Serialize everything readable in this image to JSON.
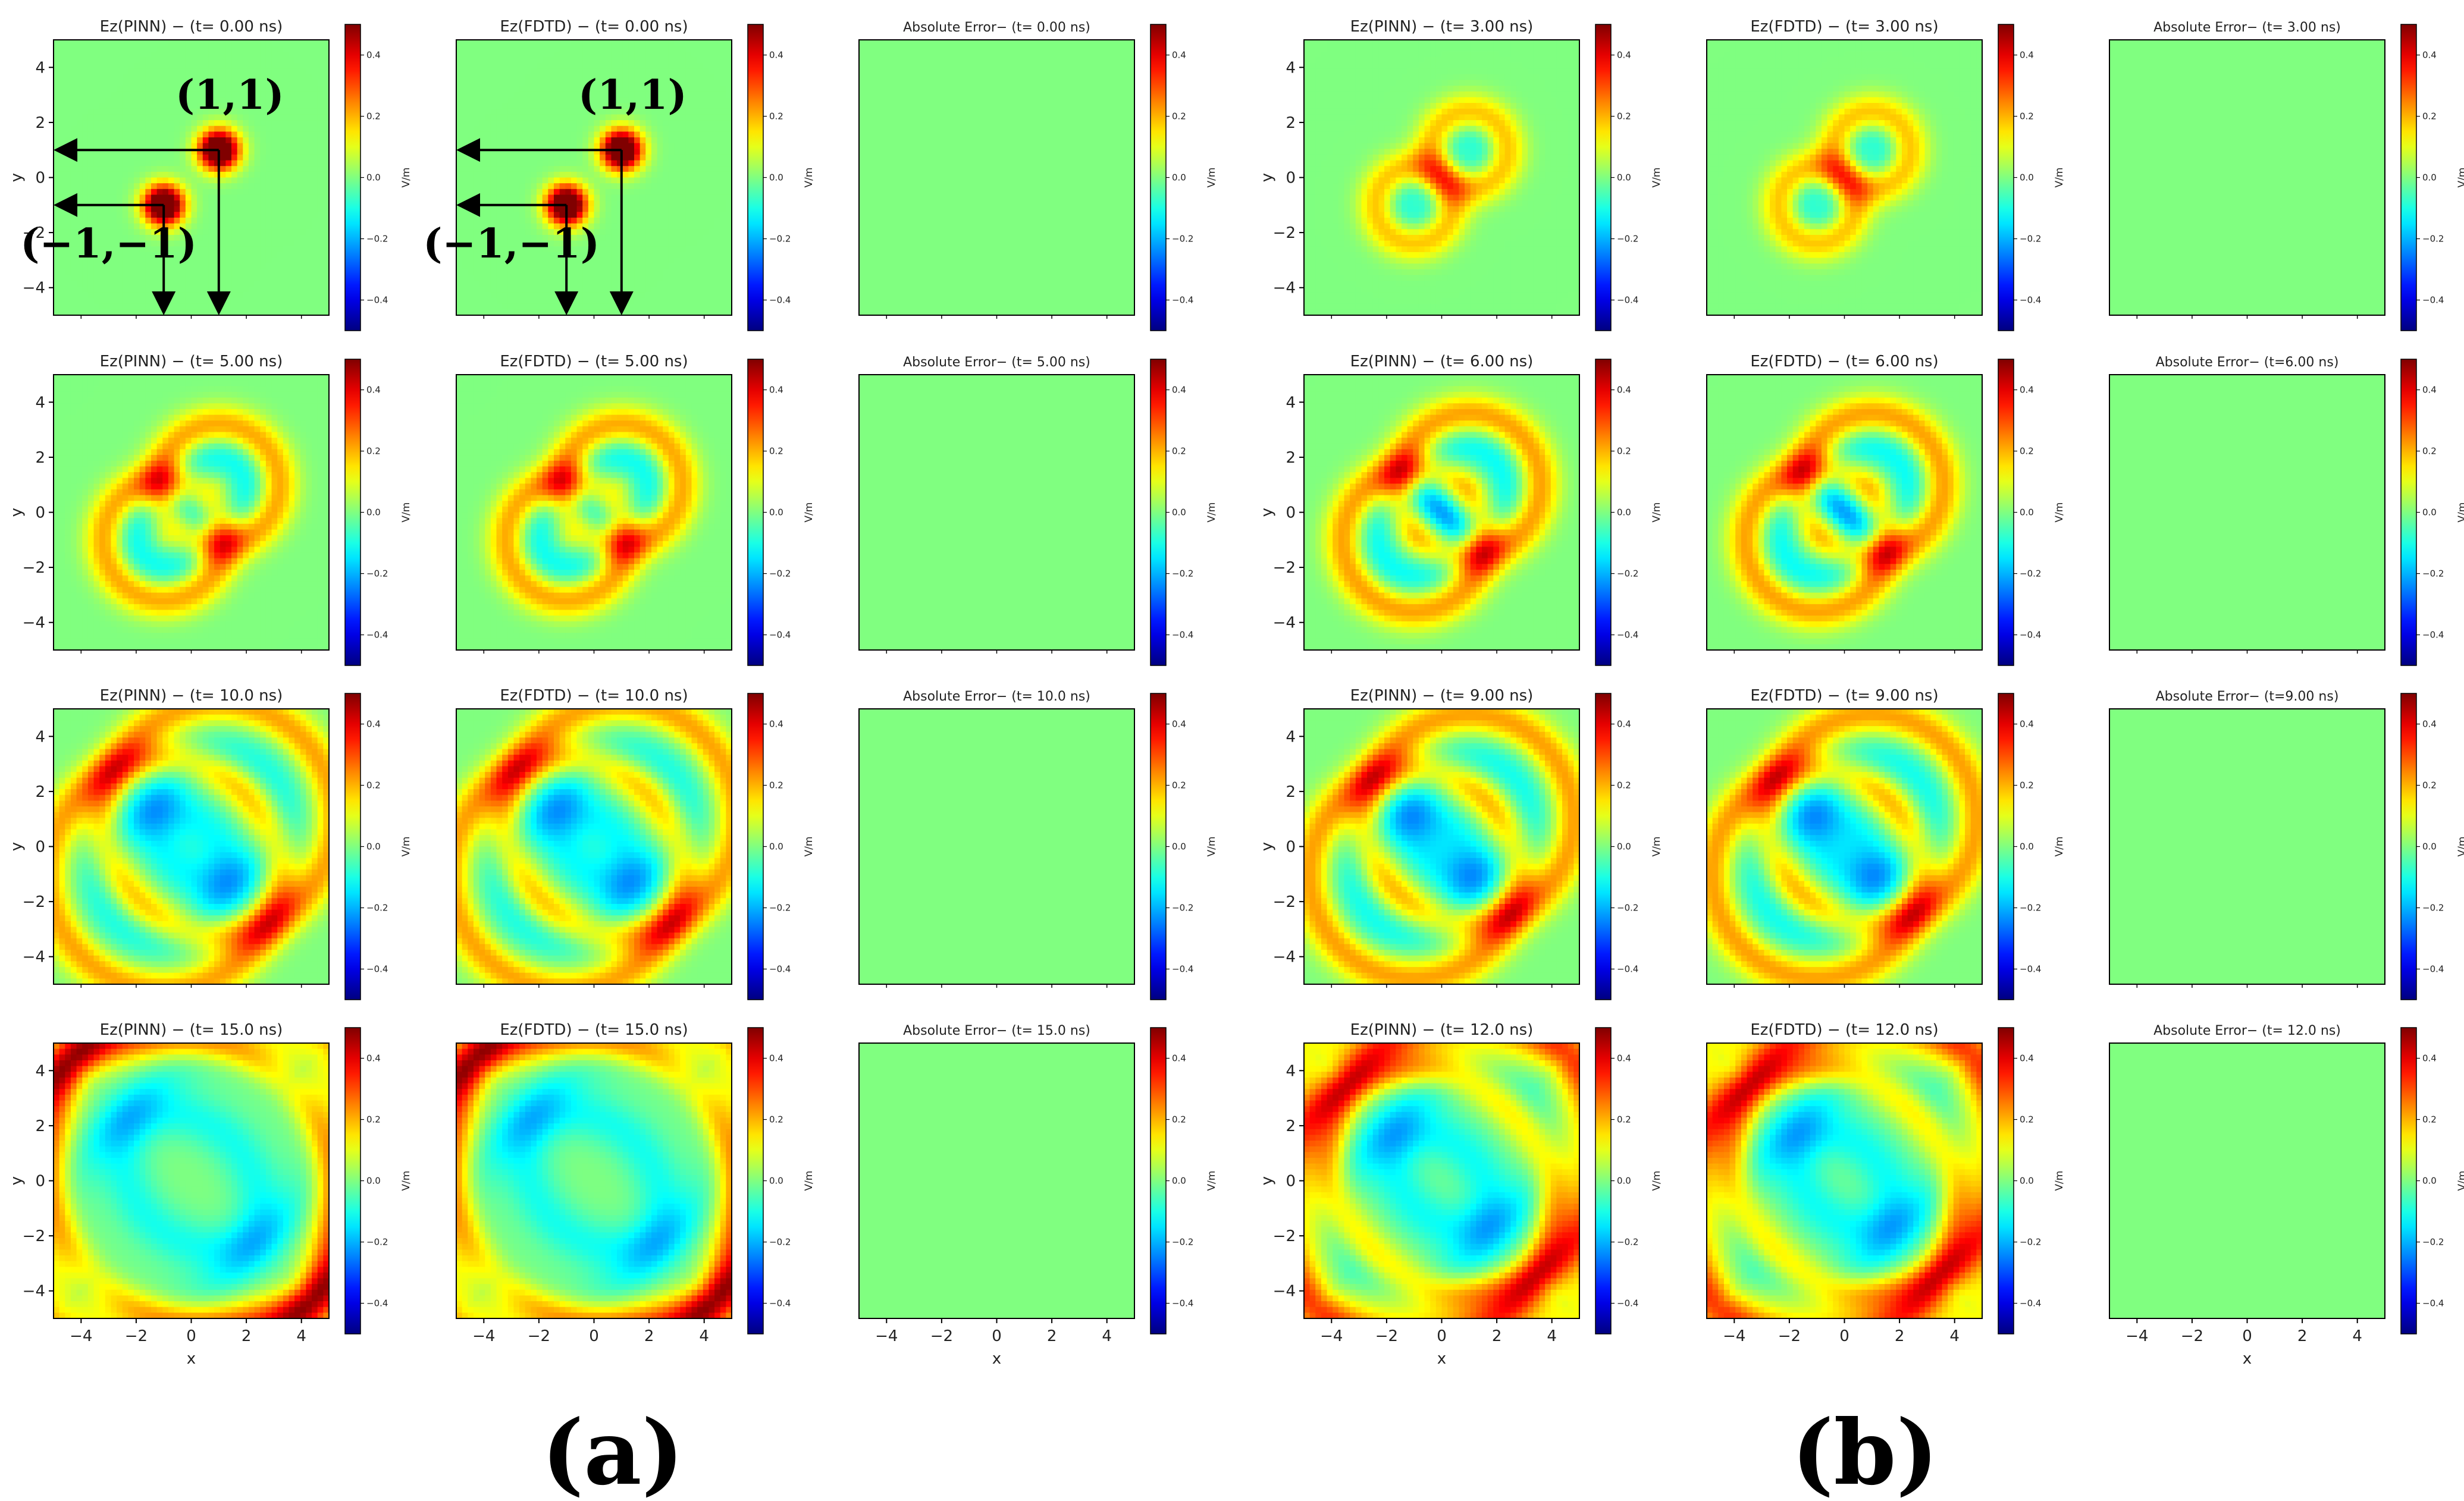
{
  "chart_data": {
    "type": "heatmap",
    "x_label": "x",
    "y_label": "y",
    "x_ticks": [
      "−4",
      "−2",
      "0",
      "2",
      "4"
    ],
    "y_ticks": [
      "4",
      "2",
      "0",
      "−2",
      "−4"
    ],
    "x_range": [
      -5,
      5
    ],
    "y_range": [
      -5,
      5
    ],
    "colorbar": {
      "label": "V/m",
      "range": [
        -0.5,
        0.5
      ],
      "ticks": [
        "0.4",
        "0.2",
        "0.0",
        "−0.2",
        "−0.4"
      ],
      "colormap": "jet"
    },
    "sources": [
      {
        "x": 1,
        "y": 1,
        "label": "(1,1)"
      },
      {
        "x": -1,
        "y": -1,
        "label": "(−1,−1)"
      }
    ],
    "groups": [
      {
        "label": "(a)",
        "rows": [
          {
            "time_ns": 0,
            "titles": [
              "Ez(PINN) − (t= 0.00 ns)",
              "Ez(FDTD) − (t= 0.00 ns)",
              "Absolute Error− (t= 0.00 ns)"
            ]
          },
          {
            "time_ns": 5,
            "titles": [
              "Ez(PINN) − (t= 5.00 ns)",
              "Ez(FDTD) − (t= 5.00 ns)",
              "Absolute Error− (t= 5.00 ns)"
            ]
          },
          {
            "time_ns": 10,
            "titles": [
              "Ez(PINN) − (t= 10.0 ns)",
              "Ez(FDTD) − (t= 10.0 ns)",
              "Absolute Error− (t= 10.0 ns)"
            ]
          },
          {
            "time_ns": 15,
            "titles": [
              "Ez(PINN) − (t= 15.0 ns)",
              "Ez(FDTD) − (t= 15.0 ns)",
              "Absolute Error− (t= 15.0 ns)"
            ]
          }
        ]
      },
      {
        "label": "(b)",
        "rows": [
          {
            "time_ns": 3,
            "titles": [
              "Ez(PINN) − (t= 3.00 ns)",
              "Ez(FDTD) − (t= 3.00 ns)",
              "Absolute Error− (t= 3.00 ns)"
            ]
          },
          {
            "time_ns": 6,
            "titles": [
              "Ez(PINN) − (t= 6.00 ns)",
              "Ez(FDTD) − (t= 6.00 ns)",
              "Absolute Error− (t=6.00 ns)"
            ]
          },
          {
            "time_ns": 9,
            "titles": [
              "Ez(PINN) − (t= 9.00 ns)",
              "Ez(FDTD) − (t= 9.00 ns)",
              "Absolute Error− (t=9.00 ns)"
            ]
          },
          {
            "time_ns": 12,
            "titles": [
              "Ez(PINN) − (t= 12.0 ns)",
              "Ez(FDTD) − (t= 12.0 ns)",
              "Absolute Error− (t= 12.0 ns)"
            ]
          }
        ]
      }
    ]
  }
}
